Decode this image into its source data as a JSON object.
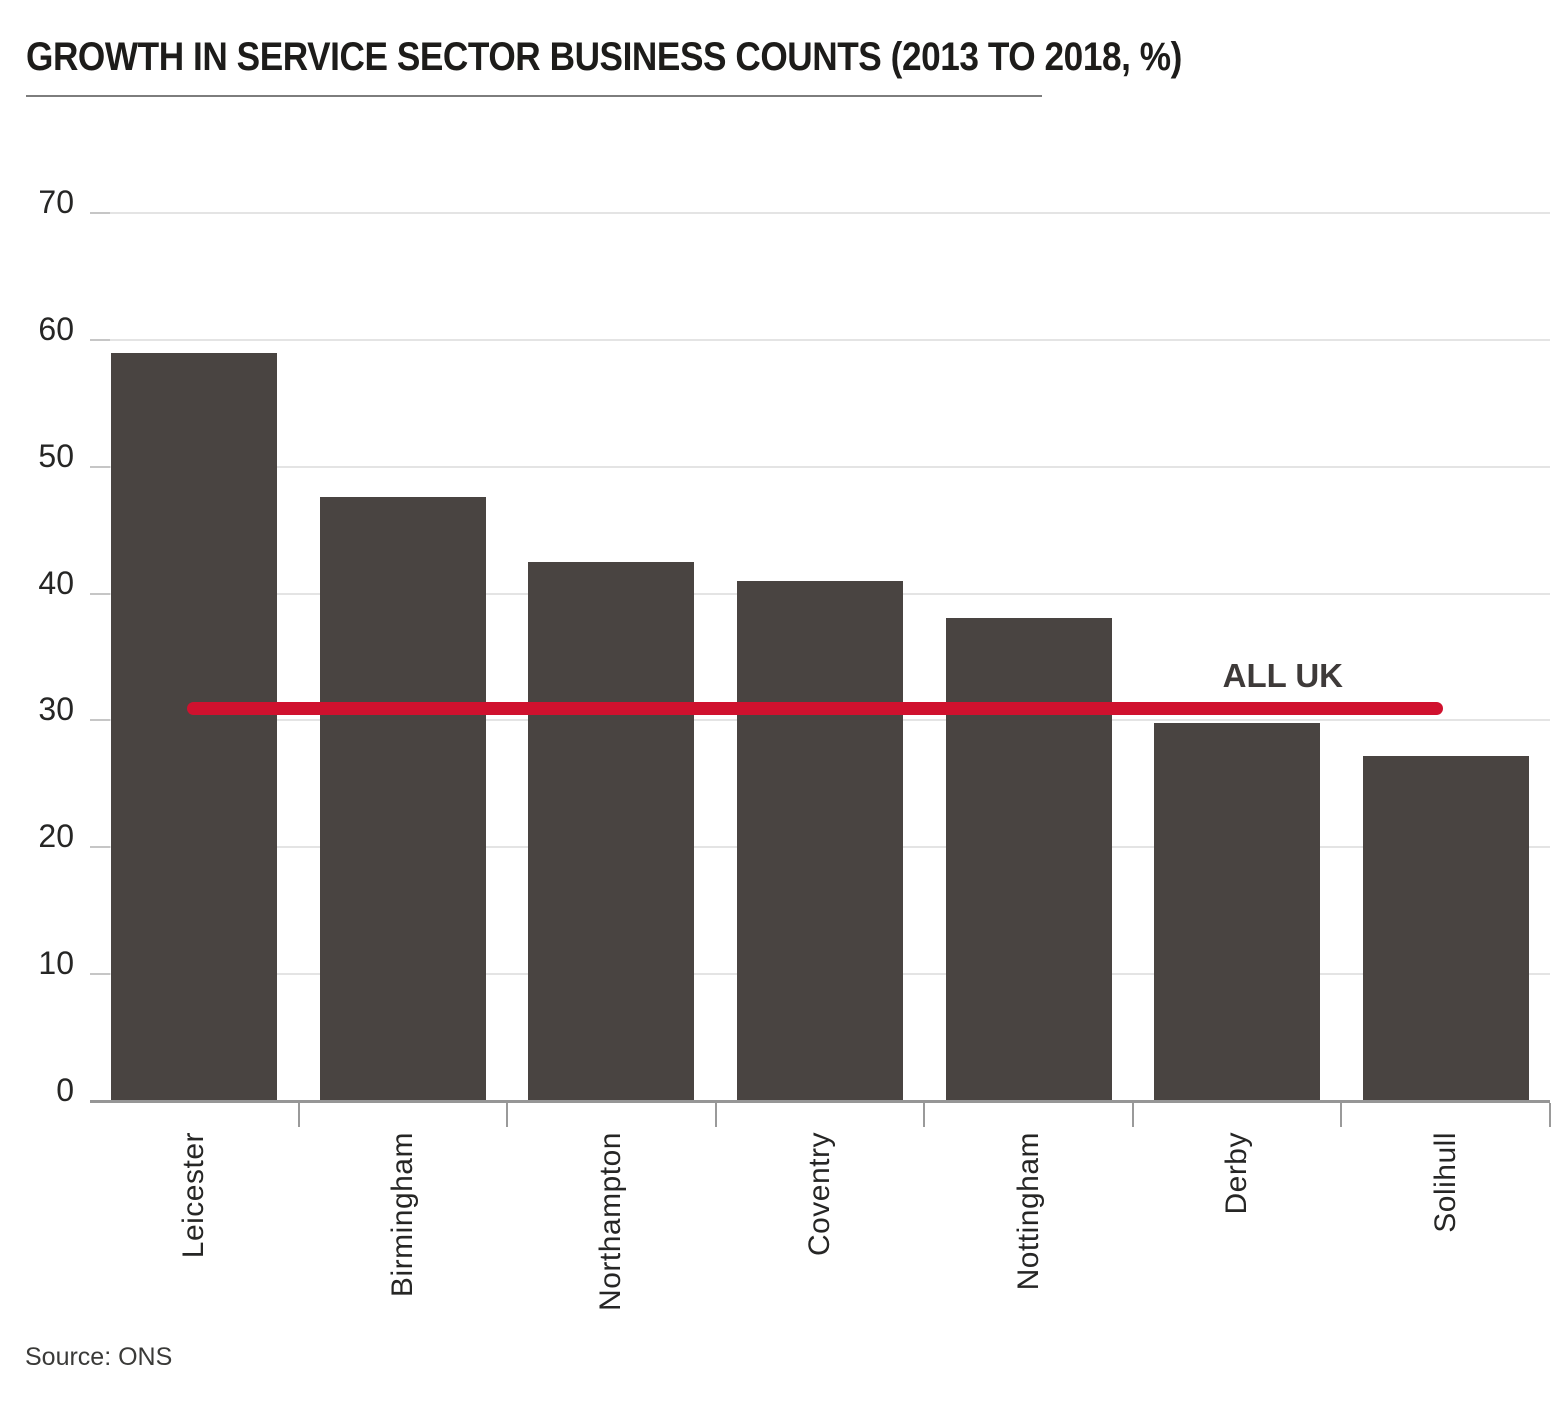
{
  "header": {
    "title": "GROWTH IN SERVICE SECTOR BUSINESS COUNTS (2013 TO 2018, %)"
  },
  "chart_data": {
    "type": "bar",
    "title": "GROWTH IN SERVICE SECTOR BUSINESS COUNTS (2013 TO 2018, %)",
    "categories": [
      "Leicester",
      "Birmingham",
      "Northampton",
      "Coventry",
      "Nottingham",
      "Derby",
      "Solihull"
    ],
    "values": [
      59,
      47.6,
      42.5,
      41,
      38.1,
      29.8,
      27.2
    ],
    "reference_line": {
      "label": "ALL UK",
      "value": 31
    },
    "xlabel": "",
    "ylabel": "",
    "ylim": [
      0,
      70
    ],
    "yticks": [
      0,
      10,
      20,
      30,
      40,
      50,
      60,
      70
    ],
    "grid": "horizontal",
    "legend": "none",
    "bar_color": "#494441",
    "reference_line_color": "#d0112e",
    "grid_color": "#e4e4e4",
    "axis_color": "#969696",
    "label_color": "#262625"
  },
  "footer": {
    "source_label": "Source: ONS"
  }
}
